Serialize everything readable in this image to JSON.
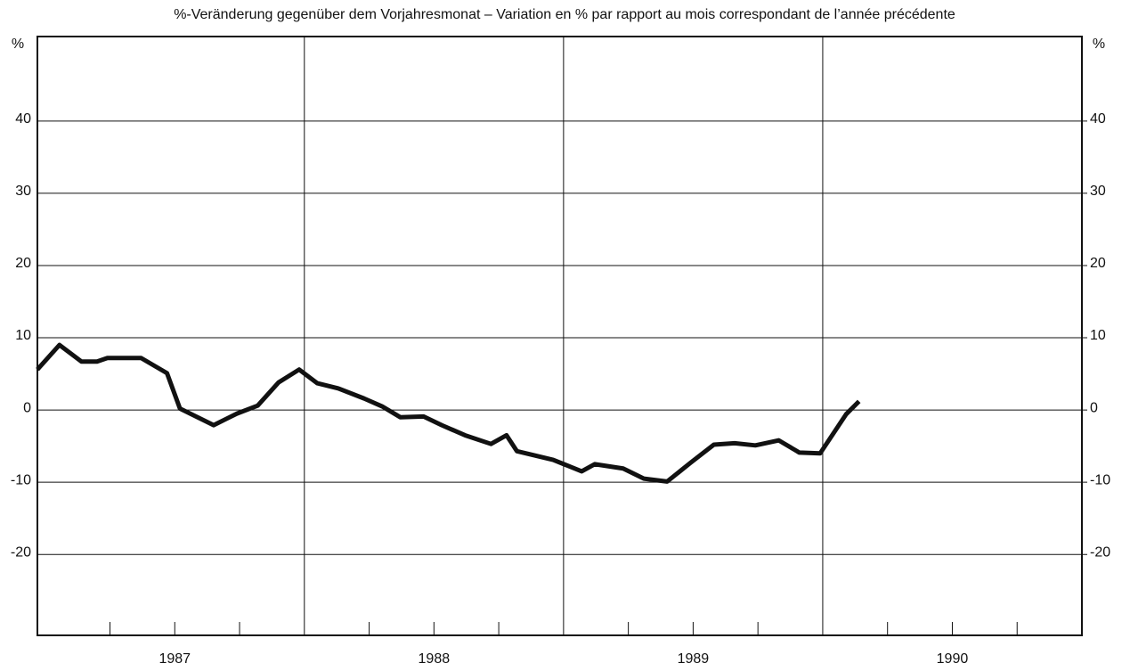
{
  "chart_data": {
    "type": "line",
    "title": "%-Veränderung gegenüber dem Vorjahresmonat – Variation en % par rapport au mois correspondant de l’année précédente",
    "y_unit_left": "%",
    "y_unit_right": "%",
    "x": [
      1986.97,
      1987.055,
      1987.14,
      1987.2,
      1987.24,
      1987.37,
      1987.47,
      1987.52,
      1987.65,
      1987.74,
      1987.82,
      1987.9,
      1987.98,
      1988.05,
      1988.13,
      1988.23,
      1988.3,
      1988.37,
      1988.46,
      1988.53,
      1988.62,
      1988.72,
      1988.78,
      1988.82,
      1988.96,
      1989.07,
      1989.12,
      1989.23,
      1989.31,
      1989.4,
      1989.49,
      1989.58,
      1989.66,
      1989.74,
      1989.83,
      1989.91,
      1989.99,
      1990.09,
      1990.14
    ],
    "series": [
      {
        "color": "#111111",
        "values": [
          5.6,
          9.0,
          6.7,
          6.7,
          7.2,
          7.2,
          5.1,
          0.2,
          -2.1,
          -0.5,
          0.6,
          3.8,
          5.6,
          3.7,
          3.0,
          1.6,
          0.5,
          -1.0,
          -0.9,
          -2.1,
          -3.5,
          -4.7,
          -3.5,
          -5.7,
          -6.9,
          -8.5,
          -7.5,
          -8.1,
          -9.5,
          -9.9,
          -7.3,
          -4.8,
          -4.6,
          -4.9,
          -4.2,
          -5.9,
          -6.0,
          -0.6,
          1.2
        ]
      }
    ],
    "xlim": [
      1986.97,
      1991.0
    ],
    "ylim": [
      -31.2,
      51.7
    ],
    "yticks": [
      -20,
      -10,
      0,
      10,
      20,
      30,
      40
    ],
    "xticks": [
      {
        "value": 1987.5,
        "label": "1987"
      },
      {
        "value": 1988.5,
        "label": "1988"
      },
      {
        "value": 1989.5,
        "label": "1989"
      },
      {
        "value": 1990.5,
        "label": "1990"
      }
    ],
    "x_grid": [
      1988,
      1989,
      1990
    ],
    "minor_xticks": [
      1987.25,
      1987.5,
      1987.75,
      1988.25,
      1988.5,
      1988.75,
      1989.25,
      1989.5,
      1989.75,
      1990.25,
      1990.5,
      1990.75
    ],
    "grid": true
  }
}
